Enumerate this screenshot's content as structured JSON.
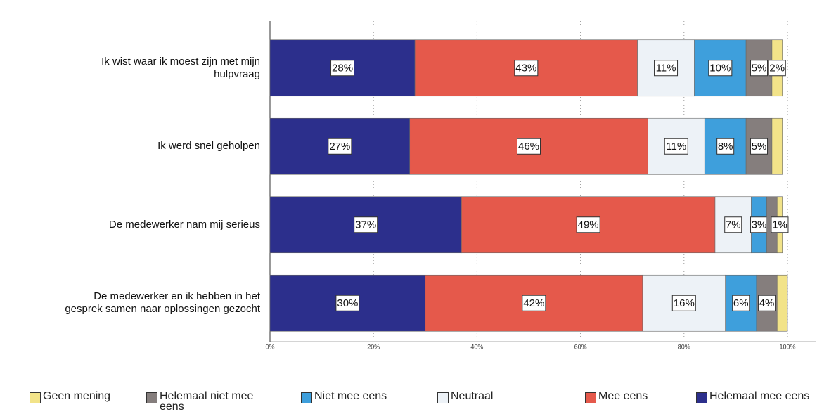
{
  "chart_data": {
    "type": "stacked-barh",
    "categories": [
      "Ik wist waar ik moest zijn met mijn\nhulpvraag",
      "Ik werd snel geholpen",
      "De medewerker nam mij serieus",
      "De medewerker en ik hebben in het\ngesprek samen naar oplossingen gezocht"
    ],
    "series": [
      {
        "name": "Geen mening",
        "color": "#f2e389",
        "values": [
          2,
          2,
          1,
          2
        ],
        "value_labels": [
          "2%",
          null,
          "1%",
          null
        ]
      },
      {
        "name": "Helemaal niet mee eens",
        "color": "#857e7d",
        "values": [
          5,
          5,
          2,
          4
        ],
        "value_labels": [
          "5%",
          "5%",
          null,
          "4%"
        ]
      },
      {
        "name": "Niet mee eens",
        "color": "#3e9fdc",
        "values": [
          10,
          8,
          3,
          6
        ],
        "value_labels": [
          "10%",
          "8%",
          "3%",
          "6%"
        ]
      },
      {
        "name": "Neutraal",
        "color": "#edf2f7",
        "values": [
          11,
          11,
          7,
          16
        ],
        "value_labels": [
          "11%",
          "11%",
          "7%",
          "16%"
        ]
      },
      {
        "name": "Mee eens",
        "color": "#e5594b",
        "values": [
          43,
          46,
          49,
          42
        ],
        "value_labels": [
          "43%",
          "46%",
          "49%",
          "42%"
        ]
      },
      {
        "name": "Helemaal mee eens",
        "color": "#2c2f8c",
        "values": [
          28,
          27,
          37,
          30
        ],
        "value_labels": [
          "28%",
          "27%",
          "37%",
          "30%"
        ]
      }
    ],
    "xlim": [
      0,
      100
    ],
    "xticks": [
      {
        "value": 0,
        "label": "0%"
      },
      {
        "value": 20,
        "label": "20%"
      },
      {
        "value": 40,
        "label": "40%"
      },
      {
        "value": 60,
        "label": "60%"
      },
      {
        "value": 80,
        "label": "80%"
      },
      {
        "value": 100,
        "label": "100%"
      }
    ],
    "grid": true
  }
}
